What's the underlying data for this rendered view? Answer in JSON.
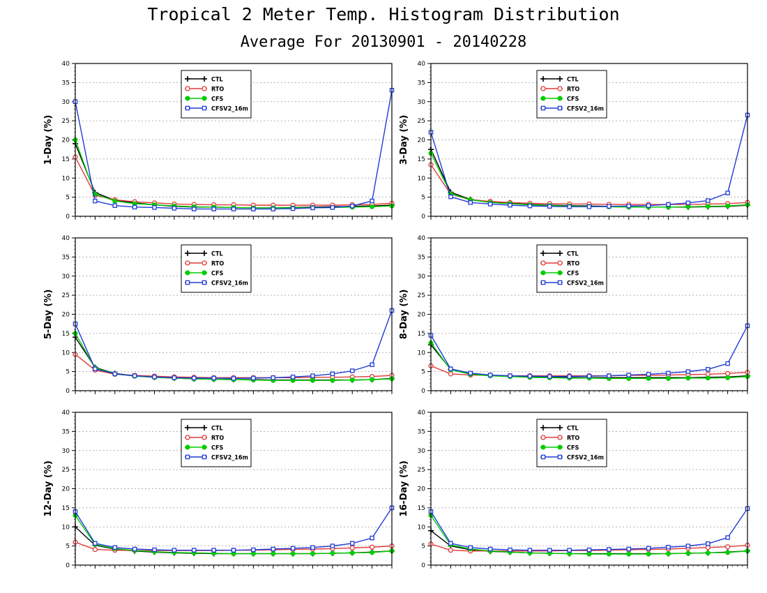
{
  "header": {
    "title": "Tropical 2 Meter Temp. Histogram Distribution",
    "subtitle": "Average For 20130901 - 20140228"
  },
  "colors": {
    "CTL": "#000000",
    "RTO": "#e03a3a",
    "CFS": "#00cc00",
    "CFSV2_16m": "#1f3bd6"
  },
  "chart_data": [
    {
      "type": "line",
      "ylabel": "1-Day (%)",
      "ylim": [
        0,
        40
      ],
      "yticks": [
        "0",
        "5",
        "10",
        "15",
        "20",
        "25",
        "30",
        "35",
        "40"
      ],
      "grid": true,
      "legend": "top-center",
      "x": [
        1,
        2,
        3,
        4,
        5,
        6,
        7,
        8,
        9,
        10,
        11,
        12,
        13,
        14,
        15,
        16,
        17
      ],
      "series": [
        {
          "name": "CTL",
          "marker": "plus",
          "values": [
            19,
            6.2,
            4.2,
            3.5,
            3.0,
            2.6,
            2.4,
            2.4,
            2.3,
            2.2,
            2.2,
            2.3,
            2.4,
            2.5,
            2.6,
            2.7,
            2.9
          ]
        },
        {
          "name": "RTO",
          "marker": "circle",
          "values": [
            15.5,
            5.5,
            4.3,
            3.8,
            3.5,
            3.2,
            3.1,
            3.0,
            3.0,
            2.9,
            2.9,
            2.9,
            2.9,
            2.9,
            3.0,
            3.1,
            3.4
          ]
        },
        {
          "name": "CFS",
          "marker": "dot",
          "values": [
            20,
            5.8,
            4.0,
            3.3,
            3.0,
            2.7,
            2.5,
            2.4,
            2.3,
            2.2,
            2.2,
            2.2,
            2.3,
            2.3,
            2.4,
            2.5,
            2.7
          ]
        },
        {
          "name": "CFSV2_16m",
          "marker": "square",
          "values": [
            30,
            4.0,
            2.8,
            2.4,
            2.3,
            2.1,
            1.9,
            1.9,
            1.9,
            1.9,
            1.9,
            2.0,
            2.2,
            2.3,
            2.7,
            4.0,
            33
          ]
        }
      ]
    },
    {
      "type": "line",
      "ylabel": "3-Day (%)",
      "ylim": [
        0,
        40
      ],
      "yticks": [
        "0",
        "5",
        "10",
        "15",
        "20",
        "25",
        "30",
        "35",
        "40"
      ],
      "grid": true,
      "legend": "top-center",
      "x": [
        1,
        2,
        3,
        4,
        5,
        6,
        7,
        8,
        9,
        10,
        11,
        12,
        13,
        14,
        15,
        16,
        17
      ],
      "series": [
        {
          "name": "CTL",
          "marker": "plus",
          "values": [
            17.5,
            6.3,
            4.4,
            3.8,
            3.4,
            3.1,
            2.9,
            2.8,
            2.7,
            2.6,
            2.5,
            2.4,
            2.4,
            2.4,
            2.5,
            2.6,
            2.9
          ]
        },
        {
          "name": "RTO",
          "marker": "circle",
          "values": [
            13.5,
            5.8,
            4.3,
            3.9,
            3.6,
            3.4,
            3.3,
            3.2,
            3.2,
            3.1,
            3.1,
            3.1,
            3.1,
            3.1,
            3.2,
            3.3,
            3.6
          ]
        },
        {
          "name": "CFS",
          "marker": "dot",
          "values": [
            16.5,
            5.9,
            4.3,
            3.6,
            3.3,
            3.0,
            2.8,
            2.7,
            2.6,
            2.5,
            2.4,
            2.4,
            2.4,
            2.5,
            2.6,
            2.7,
            3.0
          ]
        },
        {
          "name": "CFSV2_16m",
          "marker": "square",
          "values": [
            22,
            5.1,
            3.6,
            3.2,
            2.9,
            2.7,
            2.6,
            2.5,
            2.5,
            2.6,
            2.7,
            2.8,
            3.1,
            3.5,
            4.1,
            6.1,
            26.5
          ]
        }
      ]
    },
    {
      "type": "line",
      "ylabel": "5-Day (%)",
      "ylim": [
        0,
        40
      ],
      "yticks": [
        "0",
        "5",
        "10",
        "15",
        "20",
        "25",
        "30",
        "35",
        "40"
      ],
      "grid": true,
      "legend": "top-center",
      "x": [
        1,
        2,
        3,
        4,
        5,
        6,
        7,
        8,
        9,
        10,
        11,
        12,
        13,
        14,
        15,
        16,
        17
      ],
      "series": [
        {
          "name": "CTL",
          "marker": "plus",
          "values": [
            14,
            6.1,
            4.5,
            3.9,
            3.5,
            3.3,
            3.1,
            3.0,
            2.9,
            2.9,
            2.8,
            2.8,
            2.8,
            2.8,
            2.8,
            2.9,
            3.2
          ]
        },
        {
          "name": "RTO",
          "marker": "circle",
          "values": [
            9.5,
            5.4,
            4.3,
            4.0,
            3.8,
            3.6,
            3.5,
            3.4,
            3.4,
            3.4,
            3.4,
            3.4,
            3.5,
            3.5,
            3.6,
            3.7,
            4.0
          ]
        },
        {
          "name": "CFS",
          "marker": "dot",
          "values": [
            15,
            6.0,
            4.4,
            3.8,
            3.5,
            3.3,
            3.1,
            3.0,
            2.9,
            2.8,
            2.7,
            2.7,
            2.7,
            2.7,
            2.8,
            2.9,
            3.1
          ]
        },
        {
          "name": "CFSV2_16m",
          "marker": "square",
          "values": [
            17.5,
            5.7,
            4.4,
            3.9,
            3.6,
            3.4,
            3.3,
            3.3,
            3.2,
            3.3,
            3.4,
            3.6,
            3.9,
            4.4,
            5.2,
            6.8,
            21
          ]
        }
      ]
    },
    {
      "type": "line",
      "ylabel": "8-Day (%)",
      "ylim": [
        0,
        40
      ],
      "yticks": [
        "0",
        "5",
        "10",
        "15",
        "20",
        "25",
        "30",
        "35",
        "40"
      ],
      "grid": true,
      "legend": "top-center",
      "x": [
        1,
        2,
        3,
        4,
        5,
        6,
        7,
        8,
        9,
        10,
        11,
        12,
        13,
        14,
        15,
        16,
        17
      ],
      "series": [
        {
          "name": "CTL",
          "marker": "plus",
          "values": [
            12,
            5.6,
            4.4,
            4.0,
            3.8,
            3.6,
            3.5,
            3.4,
            3.4,
            3.4,
            3.4,
            3.4,
            3.4,
            3.4,
            3.5,
            3.6,
            3.9
          ]
        },
        {
          "name": "RTO",
          "marker": "circle",
          "values": [
            6.5,
            4.4,
            4.1,
            4.0,
            3.9,
            3.9,
            3.9,
            3.9,
            3.9,
            3.9,
            4.0,
            4.0,
            4.1,
            4.2,
            4.3,
            4.5,
            4.8
          ]
        },
        {
          "name": "CFS",
          "marker": "dot",
          "values": [
            12.5,
            5.5,
            4.3,
            3.9,
            3.7,
            3.5,
            3.4,
            3.3,
            3.3,
            3.2,
            3.2,
            3.2,
            3.2,
            3.3,
            3.3,
            3.4,
            3.7
          ]
        },
        {
          "name": "CFSV2_16m",
          "marker": "square",
          "values": [
            14.5,
            5.7,
            4.6,
            4.1,
            3.9,
            3.8,
            3.7,
            3.7,
            3.8,
            3.9,
            4.1,
            4.3,
            4.6,
            5.0,
            5.6,
            7.1,
            17
          ]
        }
      ]
    },
    {
      "type": "line",
      "ylabel": "12-Day (%)",
      "ylim": [
        0,
        40
      ],
      "yticks": [
        "0",
        "5",
        "10",
        "15",
        "20",
        "25",
        "30",
        "35",
        "40"
      ],
      "grid": true,
      "legend": "top-center",
      "x": [
        1,
        2,
        3,
        4,
        5,
        6,
        7,
        8,
        9,
        10,
        11,
        12,
        13,
        14,
        15,
        16,
        17
      ],
      "series": [
        {
          "name": "CTL",
          "marker": "plus",
          "values": [
            10,
            5.2,
            4.2,
            3.7,
            3.4,
            3.2,
            3.1,
            3.0,
            3.0,
            3.0,
            3.0,
            3.0,
            3.0,
            3.1,
            3.2,
            3.4,
            3.7
          ]
        },
        {
          "name": "RTO",
          "marker": "circle",
          "values": [
            6.0,
            4.1,
            3.9,
            3.8,
            3.8,
            3.8,
            3.8,
            3.8,
            3.9,
            3.9,
            4.0,
            4.1,
            4.2,
            4.3,
            4.5,
            4.7,
            5.0
          ]
        },
        {
          "name": "CFS",
          "marker": "dot",
          "values": [
            13,
            5.4,
            4.3,
            3.8,
            3.5,
            3.3,
            3.2,
            3.1,
            3.0,
            3.0,
            3.0,
            3.0,
            3.0,
            3.1,
            3.2,
            3.3,
            3.7
          ]
        },
        {
          "name": "CFSV2_16m",
          "marker": "square",
          "values": [
            14,
            5.7,
            4.6,
            4.2,
            4.0,
            3.9,
            3.9,
            3.9,
            3.9,
            4.0,
            4.2,
            4.4,
            4.6,
            5.0,
            5.7,
            7.1,
            15
          ]
        }
      ]
    },
    {
      "type": "line",
      "ylabel": "16-Day (%)",
      "ylim": [
        0,
        40
      ],
      "yticks": [
        "0",
        "5",
        "10",
        "15",
        "20",
        "25",
        "30",
        "35",
        "40"
      ],
      "grid": true,
      "legend": "top-center",
      "x": [
        1,
        2,
        3,
        4,
        5,
        6,
        7,
        8,
        9,
        10,
        11,
        12,
        13,
        14,
        15,
        16,
        17
      ],
      "series": [
        {
          "name": "CTL",
          "marker": "plus",
          "values": [
            9,
            5.0,
            4.0,
            3.6,
            3.4,
            3.2,
            3.1,
            3.0,
            3.0,
            3.0,
            3.0,
            3.0,
            3.0,
            3.1,
            3.2,
            3.4,
            3.7
          ]
        },
        {
          "name": "RTO",
          "marker": "circle",
          "values": [
            5.5,
            3.9,
            3.7,
            3.7,
            3.7,
            3.7,
            3.7,
            3.8,
            3.8,
            3.9,
            4.0,
            4.1,
            4.2,
            4.4,
            4.6,
            4.8,
            5.2
          ]
        },
        {
          "name": "CFS",
          "marker": "dot",
          "values": [
            13,
            5.3,
            4.2,
            3.7,
            3.4,
            3.2,
            3.1,
            3.0,
            2.9,
            2.9,
            2.9,
            2.9,
            3.0,
            3.1,
            3.2,
            3.3,
            3.7
          ]
        },
        {
          "name": "CFSV2_16m",
          "marker": "square",
          "values": [
            14,
            5.7,
            4.6,
            4.2,
            4.0,
            3.9,
            3.9,
            3.9,
            4.0,
            4.1,
            4.2,
            4.4,
            4.7,
            5.0,
            5.6,
            7.2,
            14.8
          ]
        }
      ]
    }
  ]
}
